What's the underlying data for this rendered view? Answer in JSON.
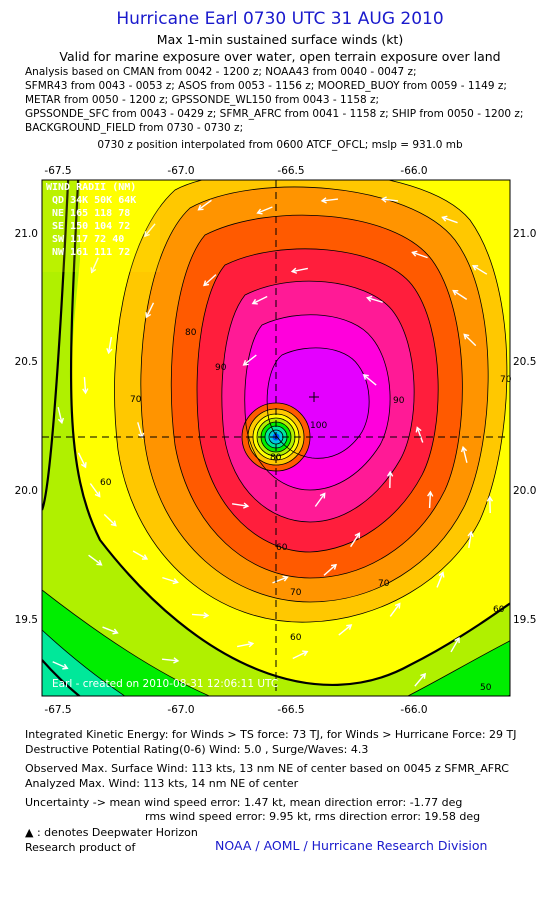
{
  "header": {
    "title": "Hurricane Earl 0730 UTC 31 AUG 2010",
    "subtitle": "Max 1-min sustained surface winds (kt)",
    "valid": "Valid for marine exposure over water, open terrain exposure over land",
    "sources": [
      "Analysis based on CMAN from 0042 - 1200 z; NOAA43 from 0040 - 0047 z;",
      "SFMR43 from 0043 - 0053 z; ASOS from 0053 - 1156 z; MOORED_BUOY from 0059 - 1149 z;",
      "METAR from 0050 - 1200 z; GPSSONDE_WL150 from 0043 - 1158 z;",
      "GPSSONDE_SFC from 0043 - 0429 z; SFMR_AFRC from 0041 - 1158 z; SHIP from 0050 - 1200 z;",
      "BACKGROUND_FIELD from 0730 - 0730 z;"
    ],
    "position": "0730 z position interpolated from 0600 ATCF_OFCL; mslp = 931.0 mb"
  },
  "map": {
    "x_ticks": [
      "-67.5",
      "-67.0",
      "-66.5",
      "-66.0"
    ],
    "y_ticks": [
      "21.0",
      "20.5",
      "20.0",
      "19.5"
    ],
    "contour_labels": [
      "50",
      "60",
      "60",
      "60",
      "60",
      "70",
      "70",
      "70",
      "70",
      "80",
      "80",
      "90",
      "90",
      "100"
    ],
    "center": {
      "lon": -66.58,
      "lat": 20.22
    },
    "max_wind_marker": {
      "lon": -66.43,
      "lat": 20.37
    },
    "colors": {
      "cyan_green": "#00e89a",
      "green": "#00ee00",
      "yellow_green": "#b0f000",
      "yellow": "#ffff00",
      "gold": "#ffc800",
      "orange": "#ff9400",
      "red_orange": "#ff5a00",
      "red": "#ff1e3c",
      "magenta_red": "#ff1a96",
      "pink": "#ff00dc",
      "violet": "#e400ff"
    },
    "wind_radii": {
      "title": "WIND RADII (NM)",
      "header": "QD  34K  50K  64K",
      "rows": [
        "NE  165  118   78",
        "SE  150  104   72",
        "SW  117   72   40",
        "NW  161  111   72"
      ]
    },
    "created": "Earl - created on 2010-08-31 12:06:11 UTC"
  },
  "footer": {
    "ike": "Integrated Kinetic Energy:  for Winds > TS force: 73 TJ,  for Winds > Hurricane Force: 29 TJ",
    "dpr": "Destructive Potential Rating(0-6)   Wind: 5.0 , Surge/Waves: 4.3",
    "obs_max": "Observed Max. Surface Wind: 113 kts, 13 nm NE of center based on 0045 z SFMR_AFRC",
    "ana_max": "Analyzed Max. Wind: 113 kts, 14 nm NE of center",
    "uncert1": "Uncertainty -> mean wind speed error: 1.47 kt,   mean direction error:  -1.77 deg",
    "uncert2": "rms wind speed error: 9.95 kt,    rms direction error: 19.58 deg",
    "deepwater": ": denotes Deepwater Horizon",
    "research": "Research product of",
    "credit": "NOAA / AOML / Hurricane Research Division"
  }
}
